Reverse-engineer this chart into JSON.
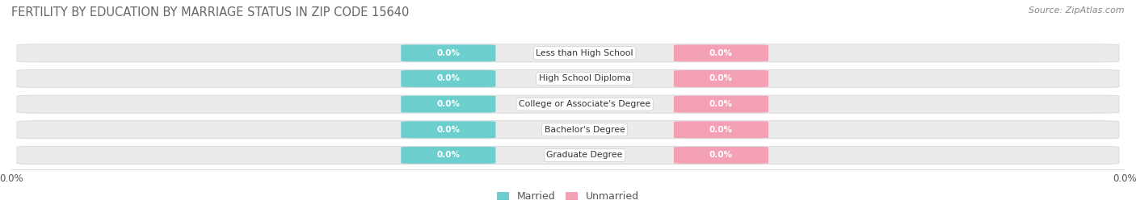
{
  "title": "FERTILITY BY EDUCATION BY MARRIAGE STATUS IN ZIP CODE 15640",
  "source": "Source: ZipAtlas.com",
  "categories": [
    "Less than High School",
    "High School Diploma",
    "College or Associate's Degree",
    "Bachelor's Degree",
    "Graduate Degree"
  ],
  "married_values": [
    0.0,
    0.0,
    0.0,
    0.0,
    0.0
  ],
  "unmarried_values": [
    0.0,
    0.0,
    0.0,
    0.0,
    0.0
  ],
  "married_color": "#6DCECE",
  "unmarried_color": "#F4A0B5",
  "row_bg_color": "#EBEBEB",
  "label_married": "Married",
  "label_unmarried": "Unmarried",
  "title_fontsize": 10.5,
  "source_fontsize": 8,
  "background_color": "#FFFFFF",
  "x_min": -1.0,
  "x_max": 1.0
}
